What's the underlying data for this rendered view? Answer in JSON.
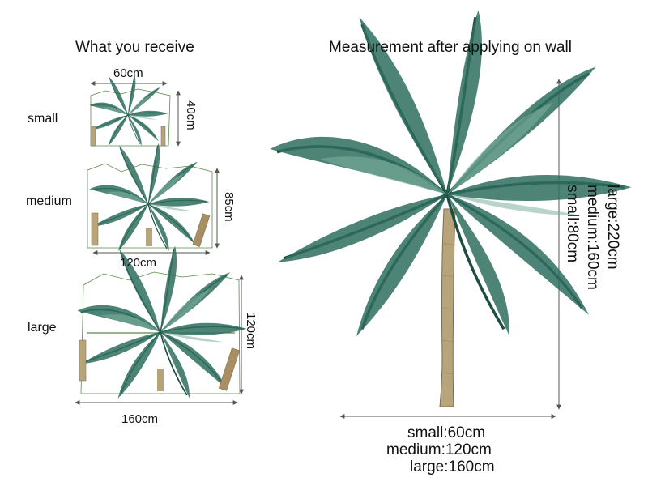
{
  "left_title": "What you receive",
  "right_title": "Measurement after applying on wall",
  "sizes": {
    "small": {
      "label": "small",
      "width": "60cm",
      "height": "40cm"
    },
    "medium": {
      "label": "medium",
      "width": "120cm",
      "height": "85cm"
    },
    "large": {
      "label": "large",
      "width": "160cm",
      "height": "120cm"
    }
  },
  "applied": {
    "height_lines": [
      "large:220cm",
      "medium:160cm",
      "small:80cm"
    ],
    "width_lines": [
      "small:60cm",
      "medium:120cm",
      "large:160cm"
    ]
  },
  "colors": {
    "frond": "#2f6f5f",
    "frond_dark": "#1c4d40",
    "frond_light": "#7fb1a0",
    "trunk": "#b8a47a",
    "trunk_dark": "#7e6b4a",
    "line": "#555555",
    "outline": "#5a8a4a"
  },
  "icons": [
    "palm-tree-decal",
    "dimension-arrow"
  ]
}
